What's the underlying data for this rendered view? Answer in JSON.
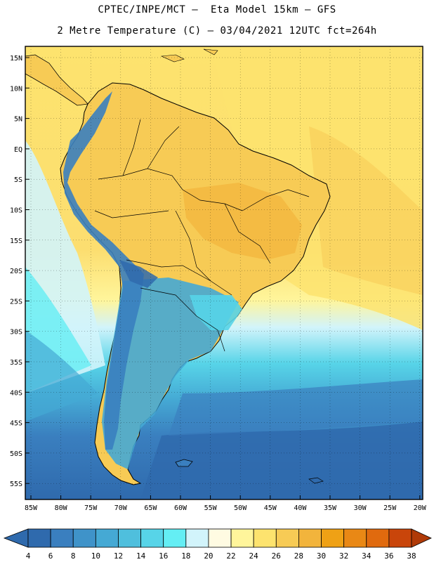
{
  "header": {
    "line1": "CPTEC/INPE/MCT –  Eta Model 15km – GFS",
    "line2": "2 Metre Temperature (C) – 03/04/2021 12UTC fct=264h"
  },
  "map": {
    "lat_labels": [
      "15N",
      "10N",
      "5N",
      "EQ",
      "5S",
      "10S",
      "15S",
      "20S",
      "25S",
      "30S",
      "35S",
      "40S",
      "45S",
      "50S",
      "55S"
    ],
    "lon_labels": [
      "85W",
      "80W",
      "75W",
      "70W",
      "65W",
      "60W",
      "55W",
      "50W",
      "45W",
      "40W",
      "35W",
      "30W",
      "25W",
      "20W"
    ],
    "ocean_color": "#fde36e",
    "land_color": "#f7cb55",
    "andes_color": "#3aa0cf"
  },
  "colorbar": {
    "labels": [
      "4",
      "6",
      "8",
      "10",
      "12",
      "14",
      "16",
      "18",
      "20",
      "22",
      "24",
      "26",
      "28",
      "30",
      "32",
      "34",
      "36",
      "38"
    ],
    "colors": [
      "#2f6aad",
      "#3a7fbf",
      "#3f93c9",
      "#45a9d4",
      "#4fbfdd",
      "#57d4e8",
      "#64eef4",
      "#d2f4fb",
      "#fffbe2",
      "#fff59b",
      "#fde36e",
      "#f7cb55",
      "#f2b43c",
      "#efa115",
      "#e98815",
      "#e06a0e",
      "#c9450a",
      "#b03a08"
    ],
    "low_color": "#2f6aad",
    "high_color": "#b03a08"
  }
}
